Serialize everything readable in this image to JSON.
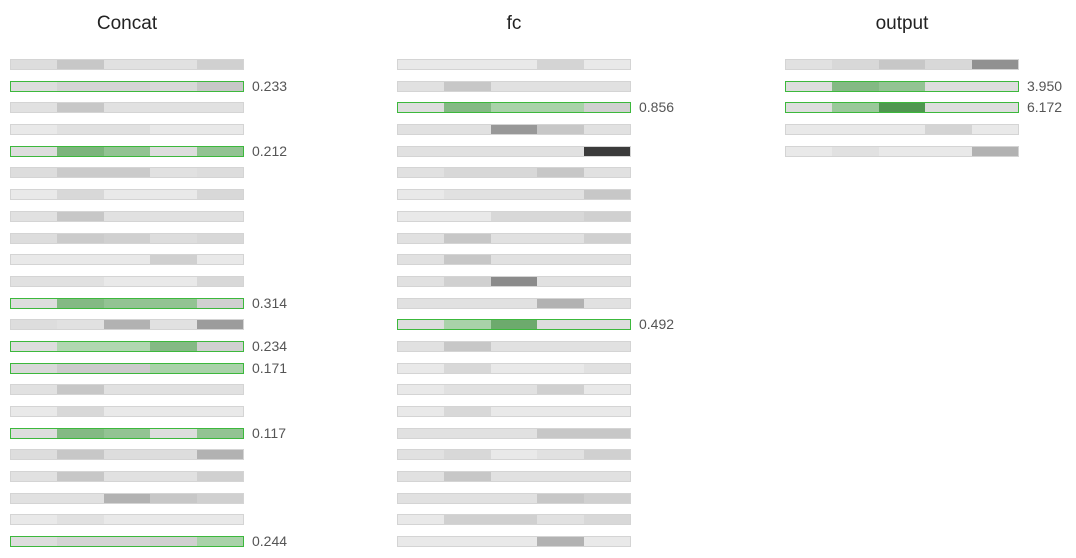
{
  "columns": [
    {
      "id": "concat",
      "title": "Concat",
      "rows": [
        {
          "cells": [
            0.1,
            0.2,
            0.08,
            0.08,
            0.16
          ],
          "value": null
        },
        {
          "cells": [
            0.1,
            0.14,
            0.14,
            0.12,
            0.2
          ],
          "value": "0.233"
        },
        {
          "cells": [
            0.08,
            0.2,
            0.08,
            0.08,
            0.08
          ],
          "value": null
        },
        {
          "cells": [
            0.04,
            0.08,
            0.08,
            0.04,
            0.04
          ],
          "value": null
        },
        {
          "cells": [
            0.1,
            0.6,
            0.45,
            0.1,
            0.45
          ],
          "value": "0.212"
        },
        {
          "cells": [
            0.1,
            0.18,
            0.18,
            0.08,
            0.1
          ],
          "value": null
        },
        {
          "cells": [
            0.04,
            0.12,
            0.04,
            0.04,
            0.12
          ],
          "value": null
        },
        {
          "cells": [
            0.08,
            0.2,
            0.08,
            0.08,
            0.08
          ],
          "value": null
        },
        {
          "cells": [
            0.1,
            0.18,
            0.16,
            0.1,
            0.12
          ],
          "value": null
        },
        {
          "cells": [
            0.04,
            0.04,
            0.04,
            0.16,
            0.04
          ],
          "value": null
        },
        {
          "cells": [
            0.08,
            0.08,
            0.04,
            0.04,
            0.12
          ],
          "value": null
        },
        {
          "cells": [
            0.1,
            0.55,
            0.45,
            0.45,
            0.16
          ],
          "value": "0.314"
        },
        {
          "cells": [
            0.1,
            0.08,
            0.3,
            0.08,
            0.4
          ],
          "value": null
        },
        {
          "cells": [
            0.1,
            0.25,
            0.25,
            0.55,
            0.16
          ],
          "value": "0.234"
        },
        {
          "cells": [
            0.12,
            0.18,
            0.18,
            0.3,
            0.3
          ],
          "value": "0.171"
        },
        {
          "cells": [
            0.08,
            0.2,
            0.08,
            0.08,
            0.08
          ],
          "value": null
        },
        {
          "cells": [
            0.04,
            0.12,
            0.04,
            0.04,
            0.04
          ],
          "value": null
        },
        {
          "cells": [
            0.1,
            0.55,
            0.45,
            0.1,
            0.45
          ],
          "value": "0.117"
        },
        {
          "cells": [
            0.1,
            0.2,
            0.1,
            0.1,
            0.3
          ],
          "value": null
        },
        {
          "cells": [
            0.08,
            0.2,
            0.08,
            0.08,
            0.16
          ],
          "value": null
        },
        {
          "cells": [
            0.08,
            0.08,
            0.3,
            0.2,
            0.16
          ],
          "value": null
        },
        {
          "cells": [
            0.04,
            0.08,
            0.04,
            0.04,
            0.04
          ],
          "value": null
        },
        {
          "cells": [
            0.1,
            0.14,
            0.14,
            0.16,
            0.3
          ],
          "value": "0.244"
        }
      ]
    },
    {
      "id": "fc",
      "title": "fc",
      "rows": [
        {
          "cells": [
            0.04,
            0.04,
            0.04,
            0.14,
            0.04
          ],
          "value": null
        },
        {
          "cells": [
            0.08,
            0.2,
            0.08,
            0.08,
            0.08
          ],
          "value": null
        },
        {
          "cells": [
            0.1,
            0.55,
            0.3,
            0.3,
            0.16
          ],
          "value": "0.856"
        },
        {
          "cells": [
            0.08,
            0.08,
            0.42,
            0.2,
            0.08
          ],
          "value": null
        },
        {
          "cells": [
            0.08,
            0.08,
            0.08,
            0.08,
            0.85
          ],
          "value": null
        },
        {
          "cells": [
            0.08,
            0.12,
            0.12,
            0.2,
            0.08
          ],
          "value": null
        },
        {
          "cells": [
            0.04,
            0.08,
            0.08,
            0.08,
            0.2
          ],
          "value": null
        },
        {
          "cells": [
            0.04,
            0.04,
            0.12,
            0.12,
            0.16
          ],
          "value": null
        },
        {
          "cells": [
            0.08,
            0.2,
            0.08,
            0.08,
            0.16
          ],
          "value": null
        },
        {
          "cells": [
            0.08,
            0.2,
            0.08,
            0.08,
            0.08
          ],
          "value": null
        },
        {
          "cells": [
            0.08,
            0.16,
            0.48,
            0.08,
            0.08
          ],
          "value": null
        },
        {
          "cells": [
            0.08,
            0.08,
            0.08,
            0.3,
            0.08
          ],
          "value": null
        },
        {
          "cells": [
            0.1,
            0.3,
            0.7,
            0.1,
            0.1
          ],
          "value": "0.492"
        },
        {
          "cells": [
            0.08,
            0.2,
            0.08,
            0.08,
            0.08
          ],
          "value": null
        },
        {
          "cells": [
            0.04,
            0.12,
            0.04,
            0.04,
            0.08
          ],
          "value": null
        },
        {
          "cells": [
            0.04,
            0.08,
            0.08,
            0.16,
            0.04
          ],
          "value": null
        },
        {
          "cells": [
            0.04,
            0.12,
            0.04,
            0.04,
            0.04
          ],
          "value": null
        },
        {
          "cells": [
            0.08,
            0.08,
            0.08,
            0.2,
            0.2
          ],
          "value": null
        },
        {
          "cells": [
            0.08,
            0.12,
            0.04,
            0.08,
            0.16
          ],
          "value": null
        },
        {
          "cells": [
            0.08,
            0.2,
            0.08,
            0.08,
            0.08
          ],
          "value": null
        },
        {
          "cells": [
            0.08,
            0.08,
            0.08,
            0.2,
            0.16
          ],
          "value": null
        },
        {
          "cells": [
            0.04,
            0.16,
            0.16,
            0.08,
            0.12
          ],
          "value": null
        },
        {
          "cells": [
            0.04,
            0.04,
            0.04,
            0.3,
            0.04
          ],
          "value": null
        }
      ]
    },
    {
      "id": "output",
      "title": "output",
      "rows": [
        {
          "cells": [
            0.08,
            0.12,
            0.2,
            0.12,
            0.45
          ],
          "value": null
        },
        {
          "cells": [
            0.1,
            0.55,
            0.45,
            0.1,
            0.1
          ],
          "value": "3.950"
        },
        {
          "cells": [
            0.1,
            0.4,
            0.9,
            0.1,
            0.1
          ],
          "value": "6.172"
        },
        {
          "cells": [
            0.04,
            0.04,
            0.04,
            0.14,
            0.04
          ],
          "value": null
        },
        {
          "cells": [
            0.04,
            0.08,
            0.04,
            0.04,
            0.3
          ],
          "value": null
        }
      ]
    }
  ],
  "colors": {
    "highlight_border": "#3cb83c",
    "border": "#d4d4d4",
    "text": "#555555",
    "title": "#222222"
  }
}
